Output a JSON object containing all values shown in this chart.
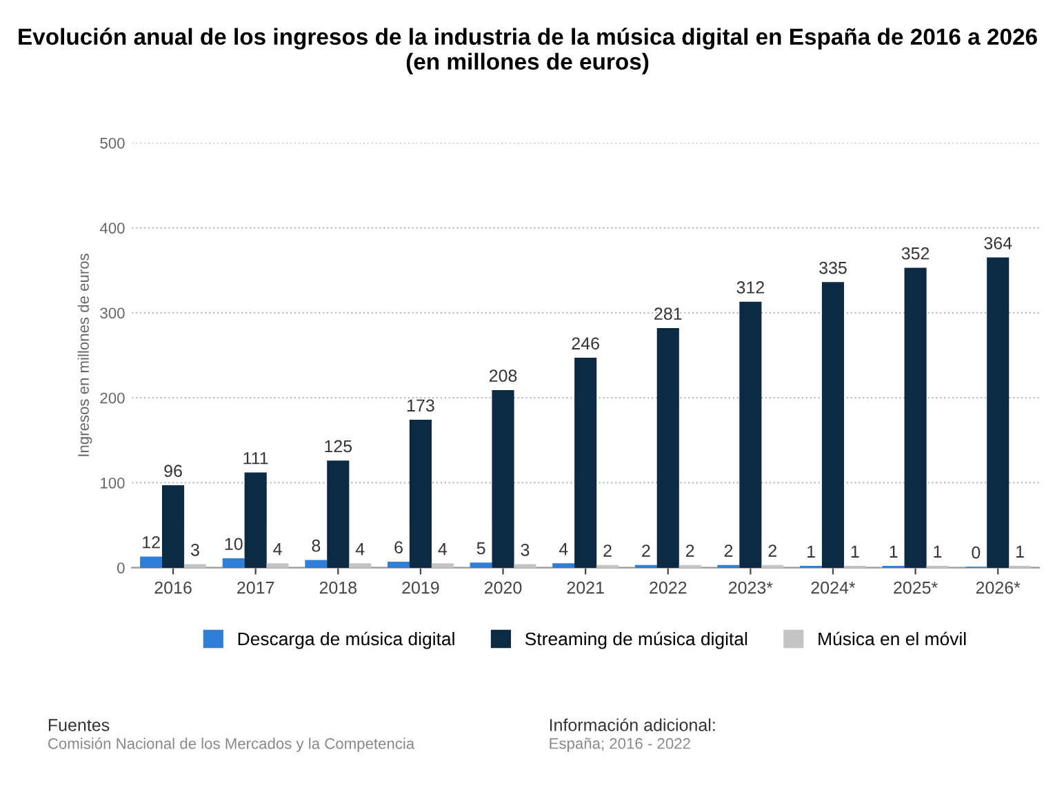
{
  "chart_data": {
    "type": "bar",
    "title": "Evolución anual de los ingresos de la industria de la música digital en España de 2016 a 2026 (en millones de euros)",
    "ylabel": "Ingresos en millones de euros",
    "categories": [
      "2016",
      "2017",
      "2018",
      "2019",
      "2020",
      "2021",
      "2022",
      "2023*",
      "2024*",
      "2025*",
      "2026*"
    ],
    "series": [
      {
        "name": "Descarga de música digital",
        "color": "#2f7ed8",
        "values": [
          12,
          10,
          8,
          6,
          5,
          4,
          2,
          2,
          1,
          1,
          0
        ]
      },
      {
        "name": "Streaming de música digital",
        "color": "#0d2a45",
        "values": [
          96,
          111,
          125,
          173,
          208,
          246,
          281,
          312,
          335,
          352,
          364
        ]
      },
      {
        "name": "Música en el móvil",
        "color": "#c4c4c4",
        "values": [
          3,
          4,
          4,
          4,
          3,
          2,
          2,
          2,
          1,
          1,
          1
        ]
      }
    ],
    "ylim": [
      0,
      500
    ],
    "yticks": [
      0,
      100,
      200,
      300,
      400,
      500
    ],
    "grid": "y",
    "legend": "bottom",
    "data_labels": true,
    "annotations": [
      "Fuentes",
      "Comisión Nacional de los Mercados y la Competencia",
      "Información adicional:",
      "España; 2016 - 2022"
    ]
  }
}
